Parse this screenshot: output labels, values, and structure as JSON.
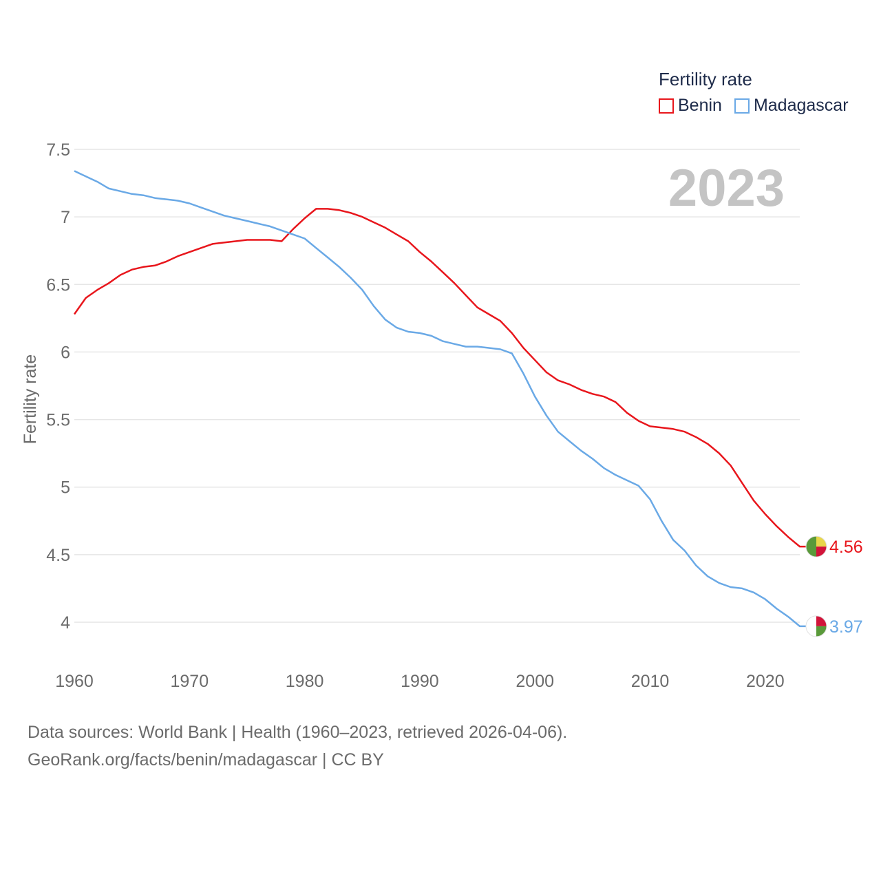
{
  "chart_data": {
    "type": "line",
    "ylabel": "Fertility rate",
    "year_label": "2023",
    "legend_title": "Fertility rate",
    "xlim": [
      1960,
      2023
    ],
    "ylim": [
      3.8,
      7.6
    ],
    "x_ticks": [
      1960,
      1970,
      1980,
      1990,
      2000,
      2010,
      2020
    ],
    "y_ticks": [
      4,
      4.5,
      5,
      5.5,
      6,
      6.5,
      7,
      7.5
    ],
    "y_tick_labels": [
      "4",
      "4.5",
      "5",
      "5.5",
      "6",
      "6.5",
      "7",
      "7.5"
    ],
    "x": [
      1960,
      1961,
      1962,
      1963,
      1964,
      1965,
      1966,
      1967,
      1968,
      1969,
      1970,
      1971,
      1972,
      1973,
      1974,
      1975,
      1976,
      1977,
      1978,
      1979,
      1980,
      1981,
      1982,
      1983,
      1984,
      1985,
      1986,
      1987,
      1988,
      1989,
      1990,
      1991,
      1992,
      1993,
      1994,
      1995,
      1996,
      1997,
      1998,
      1999,
      2000,
      2001,
      2002,
      2003,
      2004,
      2005,
      2006,
      2007,
      2008,
      2009,
      2010,
      2011,
      2012,
      2013,
      2014,
      2015,
      2016,
      2017,
      2018,
      2019,
      2020,
      2021,
      2022,
      2023
    ],
    "series": [
      {
        "name": "Benin",
        "color": "#e8161c",
        "end_label": "4.56",
        "flag_colors": [
          "#e8d74a",
          "#d2143a",
          "#5a9a3a"
        ],
        "values": [
          6.28,
          6.4,
          6.46,
          6.51,
          6.57,
          6.61,
          6.63,
          6.64,
          6.67,
          6.71,
          6.74,
          6.77,
          6.8,
          6.81,
          6.82,
          6.83,
          6.83,
          6.83,
          6.82,
          6.91,
          6.99,
          7.06,
          7.06,
          7.05,
          7.03,
          7.0,
          6.96,
          6.92,
          6.87,
          6.82,
          6.74,
          6.67,
          6.59,
          6.51,
          6.42,
          6.33,
          6.28,
          6.23,
          6.14,
          6.03,
          5.94,
          5.85,
          5.79,
          5.76,
          5.72,
          5.69,
          5.67,
          5.63,
          5.55,
          5.49,
          5.45,
          5.44,
          5.43,
          5.41,
          5.37,
          5.32,
          5.25,
          5.16,
          5.03,
          4.9,
          4.8,
          4.71,
          4.63,
          4.56
        ]
      },
      {
        "name": "Madagascar",
        "color": "#6aa9e6",
        "end_label": "3.97",
        "flag_colors": [
          "#ffffff",
          "#d2143a",
          "#5a9a3a"
        ],
        "values": [
          7.34,
          7.3,
          7.26,
          7.21,
          7.19,
          7.17,
          7.16,
          7.14,
          7.13,
          7.12,
          7.1,
          7.07,
          7.04,
          7.01,
          6.99,
          6.97,
          6.95,
          6.93,
          6.9,
          6.87,
          6.84,
          6.77,
          6.7,
          6.63,
          6.55,
          6.46,
          6.34,
          6.24,
          6.18,
          6.15,
          6.14,
          6.12,
          6.08,
          6.06,
          6.04,
          6.04,
          6.03,
          6.02,
          5.99,
          5.84,
          5.67,
          5.53,
          5.41,
          5.34,
          5.27,
          5.21,
          5.14,
          5.09,
          5.05,
          5.01,
          4.91,
          4.75,
          4.61,
          4.53,
          4.42,
          4.34,
          4.29,
          4.26,
          4.25,
          4.22,
          4.17,
          4.1,
          4.04,
          3.97
        ]
      }
    ]
  },
  "footer": {
    "source_line1": "Data sources: World Bank | Health (1960–2023, retrieved 2026-04-06).",
    "source_line2": "GeoRank.org/facts/benin/madagascar | CC BY"
  }
}
